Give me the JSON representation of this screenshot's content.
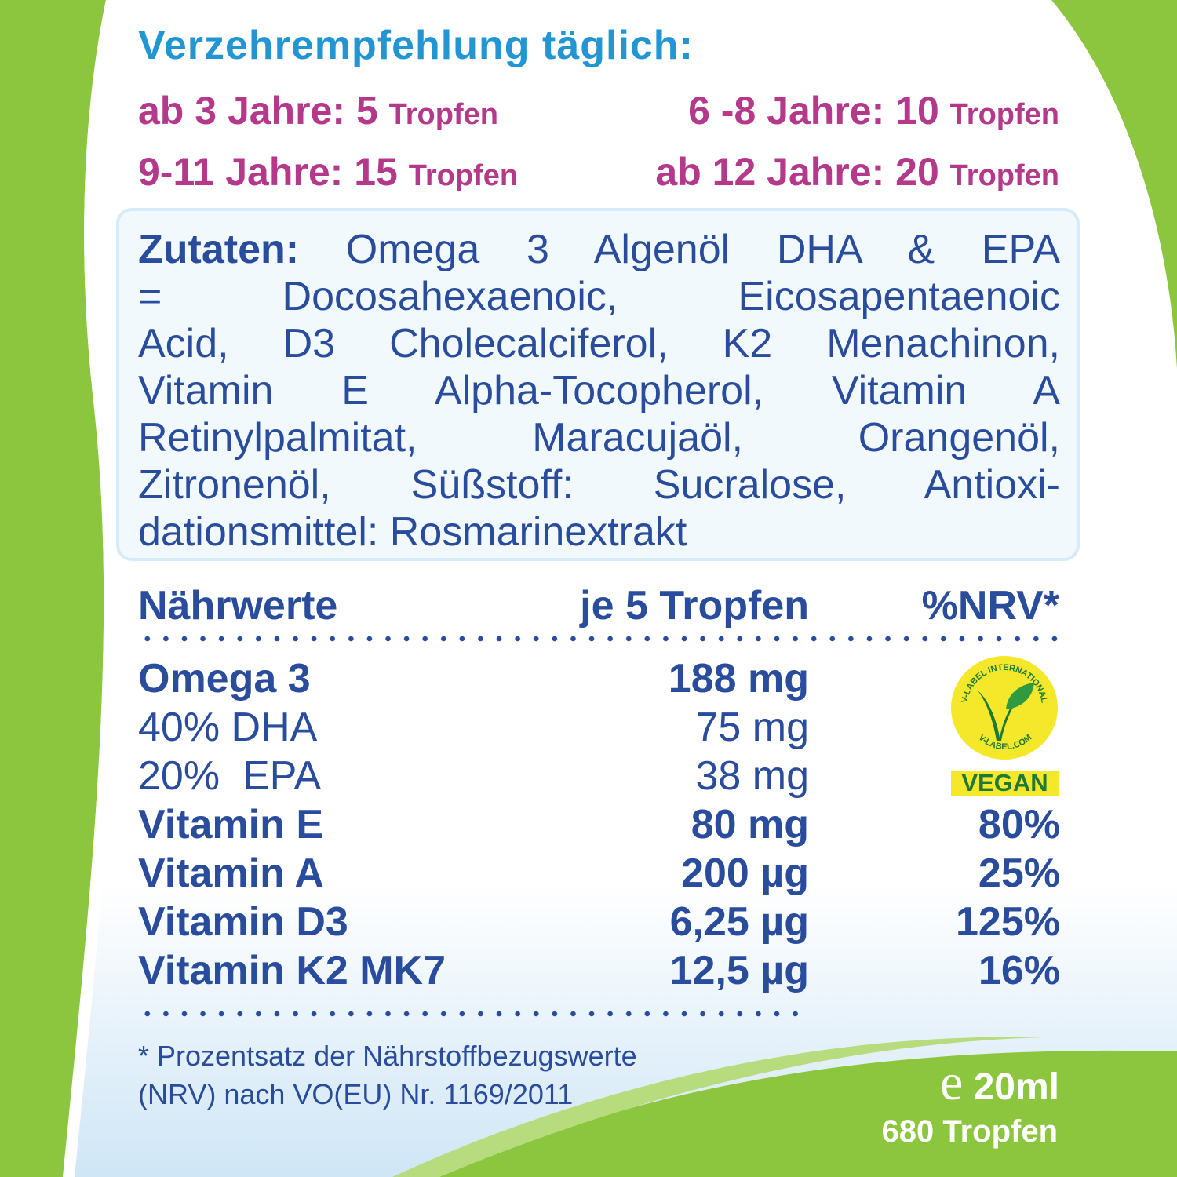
{
  "heading": "Verzehrempfehlung täglich:",
  "dosage": [
    {
      "age": "ab 3 Jahre:",
      "amount": "5",
      "unit": "Tropfen"
    },
    {
      "age": "6 -8 Jahre:",
      "amount": "10",
      "unit": "Tropfen"
    },
    {
      "age": "9-11 Jahre:",
      "amount": "15",
      "unit": "Tropfen"
    },
    {
      "age": "ab 12 Jahre:",
      "amount": "20",
      "unit": "Tropfen"
    }
  ],
  "ingredients": {
    "label": "Zutaten:",
    "lines": [
      "Omega 3 Algenöl DHA & EPA",
      "= Docosahexaenoic, Eicosapentaenoic",
      "Acid, D3 Cholecalciferol, K2 Menachinon,",
      "Vitamin E Alpha-Tocopherol, Vitamin A",
      "Retinylpalmitat, Maracujaöl, Orangenöl,",
      "Zitronenöl, Süßstoff: Sucralose, Antioxi-",
      "dationsmittel: Rosmarinextrakt"
    ]
  },
  "nutrition": {
    "headers": [
      "Nährwerte",
      "je 5 Tropfen",
      "%NRV*"
    ],
    "rows": [
      {
        "name": "Omega 3",
        "value": "188 mg",
        "nrv": ""
      },
      {
        "name": "40% DHA",
        "value": "75 mg",
        "nrv": ""
      },
      {
        "name": "20%  EPA",
        "value": "38 mg",
        "nrv": ""
      },
      {
        "name": "Vitamin E",
        "value": "80 mg",
        "nrv": "80%"
      },
      {
        "name": "Vitamin A",
        "value": "200 µg",
        "nrv": "25%"
      },
      {
        "name": "Vitamin D3",
        "value": "6,25 µg",
        "nrv": "125%"
      },
      {
        "name": "Vitamin K2 MK7",
        "value": "12,5 µg",
        "nrv": "16%"
      }
    ]
  },
  "vlabel": {
    "top": "V-LABEL INTERNATIONAL",
    "bottom": "V-LABEL.COM",
    "badge": "VEGAN"
  },
  "footnote": [
    "* Prozentsatz der Nährstoffbezugswerte",
    "(NRV) nach VO(EU) Nr. 1169/2011"
  ],
  "volume": {
    "e_mark": "e",
    "amount": "20ml",
    "drops": "680 Tropfen"
  },
  "colors": {
    "heading": "#2196d3",
    "dosage": "#b5398a",
    "text": "#2a4c9c",
    "green": "#8cc63f",
    "vegan_yellow": "#f5e72a"
  }
}
